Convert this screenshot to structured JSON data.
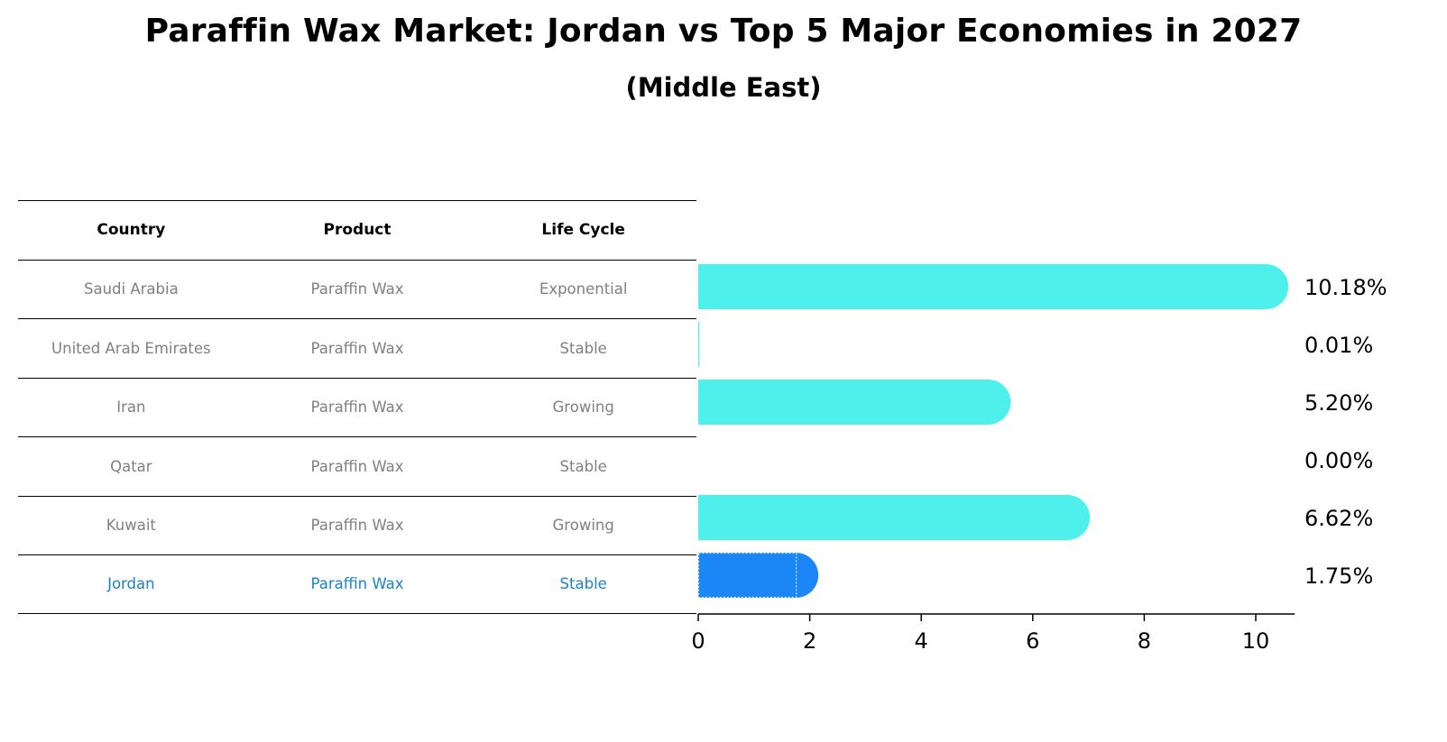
{
  "title": "Paraffin Wax Market: Jordan vs Top 5 Major Economies in 2027",
  "subtitle": "(Middle East)",
  "table": {
    "headers": [
      "Country",
      "Product",
      "Life Cycle"
    ],
    "rows": [
      [
        "Saudi Arabia",
        "Paraffin Wax",
        "Exponential"
      ],
      [
        "United Arab Emirates",
        "Paraffin Wax",
        "Stable"
      ],
      [
        "Iran",
        "Paraffin Wax",
        "Growing"
      ],
      [
        "Qatar",
        "Paraffin Wax",
        "Stable"
      ],
      [
        "Kuwait",
        "Paraffin Wax",
        "Growing"
      ],
      [
        "Jordan",
        "Paraffin Wax",
        "Stable"
      ]
    ],
    "highlight_row": 5
  },
  "colors": {
    "bar": "#4ef0ec",
    "highlight_bar": "#1b86f5",
    "highlight_text": "#1a84c6",
    "muted_text": "#808080"
  },
  "chart_data": {
    "type": "bar",
    "orientation": "horizontal",
    "categories": [
      "Saudi Arabia",
      "United Arab Emirates",
      "Iran",
      "Qatar",
      "Kuwait",
      "Jordan"
    ],
    "values": [
      10.18,
      0.01,
      5.2,
      0.0,
      6.62,
      1.75
    ],
    "value_labels": [
      "10.18%",
      "0.01%",
      "5.20%",
      "0.00%",
      "6.62%",
      "1.75%"
    ],
    "xlim": [
      0,
      10.7
    ],
    "xticks": [
      0,
      2,
      4,
      6,
      8,
      10
    ],
    "highlight_index": 5,
    "grid": false
  }
}
